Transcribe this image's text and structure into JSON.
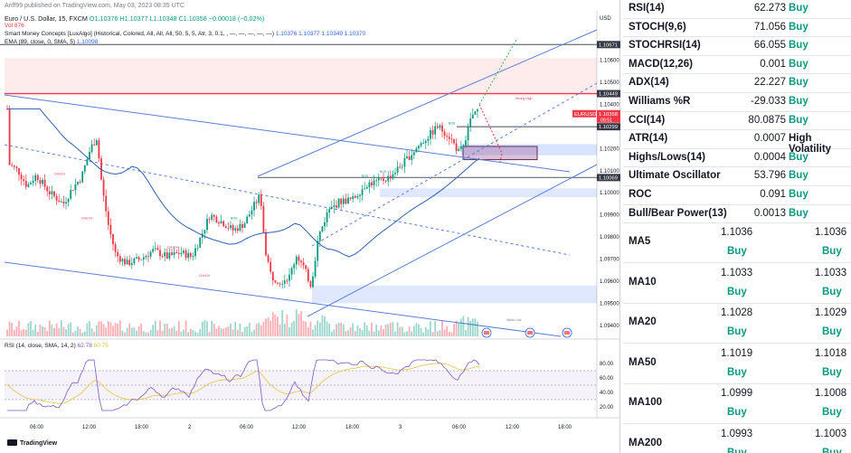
{
  "header": {
    "publisher": "Ariff99 published on TradingView.com, May 03, 2023 08:35 UTC",
    "symbol": "Euro / U.S. Dollar, 15, FXCM",
    "ohlc": "O1.10376  H1.10377  L1.10348  C1.10358  −0.00018 (−0.02%)",
    "vol": "Vol  876",
    "smc": "Smart Money Concepts [LuxAlgo] (Historical, Colored, All, All, All, 50, 5, 5, Atr, 3, 0.1, , —, —, —, —, —)",
    "smc_values": "1.10376  1.10377  1.10349  1.10370",
    "ema": "EMA (89, close, 0, SMA, 5)",
    "ema_value": "1.10098",
    "rsi": "RSI (14, close, SMA, 14, 2)",
    "rsi_values": [
      "62.78",
      "60.75"
    ],
    "tv_logo": "TradingView",
    "currency": "USD"
  },
  "chart_data": {
    "type": "candlestick",
    "symbol": "EURUSD",
    "timeframe": "15",
    "ylim": [
      1.0935,
      1.1075
    ],
    "price_ticks": [
      1.106,
      1.105,
      1.104,
      1.103,
      1.102,
      1.101,
      1.1,
      1.099,
      1.098,
      1.097,
      1.096,
      1.095,
      1.094
    ],
    "tick_labels": [
      "1.10600",
      "1.10500",
      "1.10400",
      "1.10300",
      "1.10200",
      "1.10100",
      "1.10000",
      "1.09900",
      "1.09800",
      "1.09700",
      "1.09600",
      "1.09500",
      "1.09400"
    ],
    "price_tags": [
      {
        "value": 1.10671,
        "label": "1.10671",
        "style": "dark"
      },
      {
        "value": 1.10449,
        "label": "1.10449",
        "style": "dark"
      },
      {
        "value": 1.10358,
        "label": "1.10358",
        "style": "last",
        "sub": "09:51",
        "symbol": "EURUSD"
      },
      {
        "value": 1.10299,
        "label": "1.10299",
        "style": "dark"
      },
      {
        "value": 1.10069,
        "label": "1.10069",
        "style": "dark"
      }
    ],
    "time_labels": [
      "06:00",
      "12:00",
      "18:00",
      "2",
      "06:00",
      "12:00",
      "18:00",
      "3",
      "06:00",
      "12:00",
      "18:00"
    ],
    "rsi_ticks": [
      80,
      60,
      40,
      20
    ],
    "rsi_tick_labels": [
      "80.00",
      "60.00",
      "40.00",
      "20.00"
    ],
    "annotations": [
      "Strong High",
      "BOS",
      "CHoCH",
      "Weak Low"
    ],
    "ohlc_last": {
      "open": 1.10376,
      "high": 1.10377,
      "low": 1.10348,
      "close": 1.10358
    }
  },
  "indicators": [
    {
      "name": "RSI(14)",
      "value": "62.273",
      "action": "Buy"
    },
    {
      "name": "STOCH(9,6)",
      "value": "71.056",
      "action": "Buy"
    },
    {
      "name": "STOCHRSI(14)",
      "value": "66.055",
      "action": "Buy"
    },
    {
      "name": "MACD(12,26)",
      "value": "0.001",
      "action": "Buy"
    },
    {
      "name": "ADX(14)",
      "value": "22.227",
      "action": "Buy"
    },
    {
      "name": "Williams %R",
      "value": "-29.033",
      "action": "Buy"
    },
    {
      "name": "CCI(14)",
      "value": "80.0875",
      "action": "Buy"
    },
    {
      "name": "ATR(14)",
      "value": "0.0007",
      "action": "High Volatility"
    },
    {
      "name": "Highs/Lows(14)",
      "value": "0.0004",
      "action": "Buy"
    },
    {
      "name": "Ultimate Oscillator",
      "value": "53.796",
      "action": "Buy"
    },
    {
      "name": "ROC",
      "value": "0.091",
      "action": "Buy"
    },
    {
      "name": "Bull/Bear Power(13)",
      "value": "0.0013",
      "action": "Buy"
    }
  ],
  "moving_averages": [
    {
      "name": "MA5",
      "simple": "1.1036",
      "simple_action": "Buy",
      "exp": "1.1036",
      "exp_action": "Buy"
    },
    {
      "name": "MA10",
      "simple": "1.1033",
      "simple_action": "Buy",
      "exp": "1.1033",
      "exp_action": "Buy"
    },
    {
      "name": "MA20",
      "simple": "1.1028",
      "simple_action": "Buy",
      "exp": "1.1029",
      "exp_action": "Buy"
    },
    {
      "name": "MA50",
      "simple": "1.1019",
      "simple_action": "Buy",
      "exp": "1.1018",
      "exp_action": "Buy"
    },
    {
      "name": "MA100",
      "simple": "1.0999",
      "simple_action": "Buy",
      "exp": "1.1008",
      "exp_action": "Buy"
    },
    {
      "name": "MA200",
      "simple": "1.0993",
      "simple_action": "Buy",
      "exp": "1.1003",
      "exp_action": "Buy"
    }
  ],
  "colors": {
    "bull": "#089981",
    "bear": "#f23645",
    "channel": "#5b7fd6",
    "ema": "#2f5fb0",
    "rsi": "#7e57c2",
    "rsi_ma": "#e6c34a",
    "buy": "#089981"
  }
}
